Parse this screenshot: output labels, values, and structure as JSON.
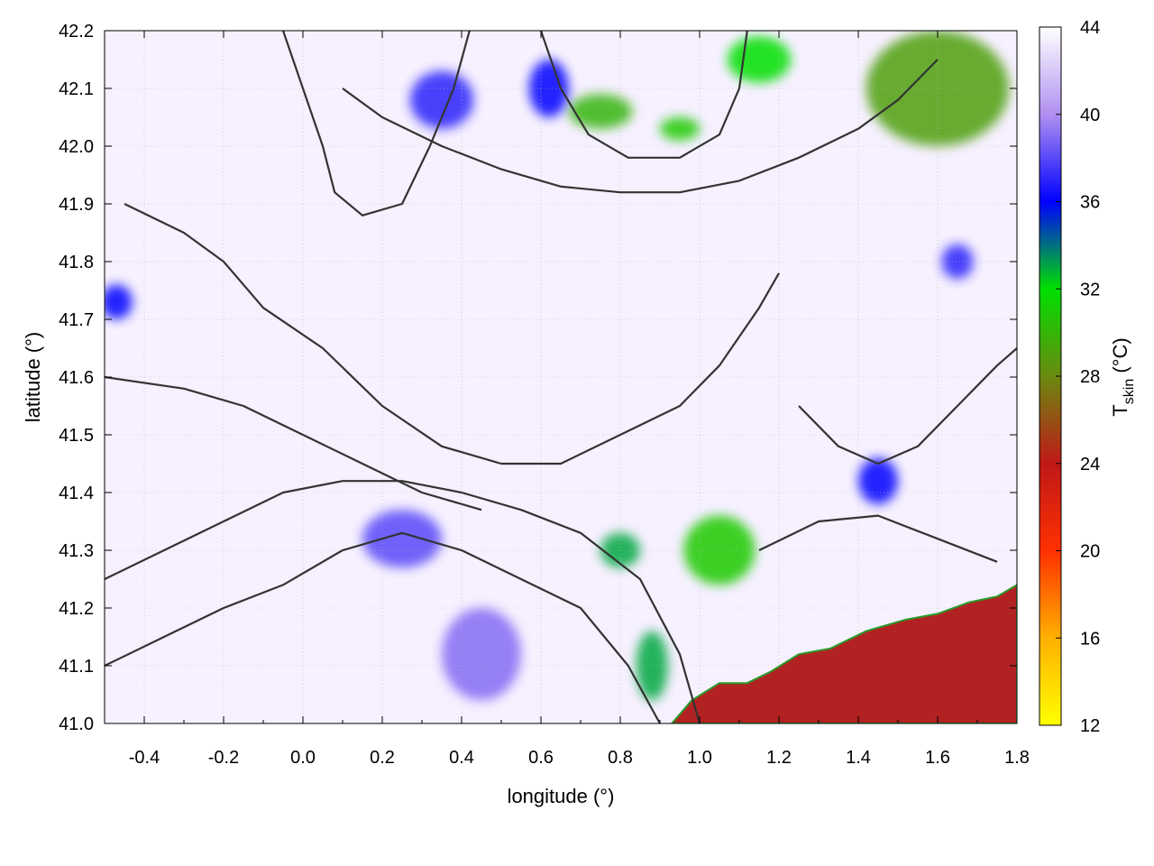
{
  "chart_data": {
    "type": "heatmap",
    "title": "",
    "xlabel": "longitude (°)",
    "ylabel": "latitude (°)",
    "xlim": [
      -0.5,
      1.8
    ],
    "ylim": [
      41.0,
      42.2
    ],
    "x_ticks": [
      "-0.4",
      "-0.2",
      "0.0",
      "0.2",
      "0.4",
      "0.6",
      "0.8",
      "1.0",
      "1.2",
      "1.4",
      "1.6",
      "1.8"
    ],
    "y_ticks": [
      "41.0",
      "41.1",
      "41.2",
      "41.3",
      "41.4",
      "41.5",
      "41.6",
      "41.7",
      "41.8",
      "41.9",
      "42.0",
      "42.1",
      "42.2"
    ],
    "grid": true,
    "colorbar": {
      "label_main": "T",
      "label_sub": "skin",
      "label_unit": " (°C)",
      "range": [
        12,
        44
      ],
      "ticks": [
        "12",
        "16",
        "20",
        "24",
        "28",
        "32",
        "36",
        "40",
        "44"
      ],
      "stops": [
        {
          "value": 12,
          "color": "#ffff00"
        },
        {
          "value": 16,
          "color": "#ffb000"
        },
        {
          "value": 20,
          "color": "#ff3000"
        },
        {
          "value": 24,
          "color": "#c01818"
        },
        {
          "value": 28,
          "color": "#6a8a10"
        },
        {
          "value": 32,
          "color": "#00e000"
        },
        {
          "value": 36,
          "color": "#0000ff"
        },
        {
          "value": 40,
          "color": "#b090f0"
        },
        {
          "value": 44,
          "color": "#ffffff"
        }
      ]
    },
    "sea_region": {
      "value": 24,
      "color": "#b22222",
      "coastline": [
        [
          0.93,
          41.0
        ],
        [
          0.98,
          41.04
        ],
        [
          1.05,
          41.07
        ],
        [
          1.12,
          41.07
        ],
        [
          1.18,
          41.09
        ],
        [
          1.25,
          41.12
        ],
        [
          1.33,
          41.13
        ],
        [
          1.42,
          41.16
        ],
        [
          1.52,
          41.18
        ],
        [
          1.6,
          41.19
        ],
        [
          1.68,
          41.21
        ],
        [
          1.75,
          41.22
        ],
        [
          1.8,
          41.24
        ],
        [
          1.8,
          41.0
        ]
      ]
    },
    "warm_patches": [
      {
        "lon": -0.47,
        "lat": 41.73,
        "rx": 0.04,
        "ry": 0.03,
        "value": 36
      },
      {
        "lon": 0.25,
        "lat": 41.32,
        "rx": 0.1,
        "ry": 0.05,
        "value": 38
      },
      {
        "lon": 0.45,
        "lat": 41.12,
        "rx": 0.1,
        "ry": 0.08,
        "value": 39
      },
      {
        "lon": 0.8,
        "lat": 41.3,
        "rx": 0.05,
        "ry": 0.03,
        "value": 33
      },
      {
        "lon": 1.05,
        "lat": 41.3,
        "rx": 0.09,
        "ry": 0.06,
        "value": 31
      },
      {
        "lon": 0.88,
        "lat": 41.1,
        "rx": 0.04,
        "ry": 0.06,
        "value": 33
      },
      {
        "lon": 0.75,
        "lat": 42.06,
        "rx": 0.08,
        "ry": 0.03,
        "value": 30
      },
      {
        "lon": 0.95,
        "lat": 42.03,
        "rx": 0.05,
        "ry": 0.02,
        "value": 31
      },
      {
        "lon": 1.15,
        "lat": 42.15,
        "rx": 0.08,
        "ry": 0.04,
        "value": 32
      },
      {
        "lon": 1.6,
        "lat": 42.1,
        "rx": 0.18,
        "ry": 0.1,
        "value": 29
      },
      {
        "lon": 1.45,
        "lat": 41.42,
        "rx": 0.05,
        "ry": 0.04,
        "value": 36
      },
      {
        "lon": 1.65,
        "lat": 41.8,
        "rx": 0.04,
        "ry": 0.03,
        "value": 37
      },
      {
        "lon": 0.35,
        "lat": 42.08,
        "rx": 0.08,
        "ry": 0.05,
        "value": 37
      },
      {
        "lon": 0.62,
        "lat": 42.1,
        "rx": 0.05,
        "ry": 0.05,
        "value": 36
      }
    ],
    "contours": [
      [
        [
          -0.5,
          41.1
        ],
        [
          -0.35,
          41.15
        ],
        [
          -0.2,
          41.2
        ],
        [
          -0.05,
          41.24
        ],
        [
          0.1,
          41.3
        ],
        [
          0.25,
          41.33
        ],
        [
          0.4,
          41.3
        ],
        [
          0.55,
          41.25
        ],
        [
          0.7,
          41.2
        ],
        [
          0.82,
          41.1
        ],
        [
          0.9,
          41.0
        ]
      ],
      [
        [
          -0.5,
          41.25
        ],
        [
          -0.35,
          41.3
        ],
        [
          -0.2,
          41.35
        ],
        [
          -0.05,
          41.4
        ],
        [
          0.1,
          41.42
        ],
        [
          0.25,
          41.42
        ],
        [
          0.4,
          41.4
        ],
        [
          0.55,
          41.37
        ],
        [
          0.7,
          41.33
        ],
        [
          0.85,
          41.25
        ],
        [
          0.95,
          41.12
        ],
        [
          1.0,
          41.0
        ]
      ],
      [
        [
          -0.5,
          41.6
        ],
        [
          -0.3,
          41.58
        ],
        [
          -0.15,
          41.55
        ],
        [
          0.0,
          41.5
        ],
        [
          0.15,
          41.45
        ],
        [
          0.3,
          41.4
        ],
        [
          0.45,
          41.37
        ]
      ],
      [
        [
          -0.45,
          41.9
        ],
        [
          -0.3,
          41.85
        ],
        [
          -0.2,
          41.8
        ],
        [
          -0.1,
          41.72
        ],
        [
          0.05,
          41.65
        ],
        [
          0.2,
          41.55
        ],
        [
          0.35,
          41.48
        ],
        [
          0.5,
          41.45
        ],
        [
          0.65,
          41.45
        ],
        [
          0.8,
          41.5
        ],
        [
          0.95,
          41.55
        ],
        [
          1.05,
          41.62
        ],
        [
          1.15,
          41.72
        ],
        [
          1.2,
          41.78
        ]
      ],
      [
        [
          0.1,
          42.1
        ],
        [
          0.2,
          42.05
        ],
        [
          0.35,
          42.0
        ],
        [
          0.5,
          41.96
        ],
        [
          0.65,
          41.93
        ],
        [
          0.8,
          41.92
        ],
        [
          0.95,
          41.92
        ],
        [
          1.1,
          41.94
        ],
        [
          1.25,
          41.98
        ],
        [
          1.4,
          42.03
        ],
        [
          1.5,
          42.08
        ],
        [
          1.6,
          42.15
        ]
      ],
      [
        [
          1.25,
          41.55
        ],
        [
          1.35,
          41.48
        ],
        [
          1.45,
          41.45
        ],
        [
          1.55,
          41.48
        ],
        [
          1.65,
          41.55
        ],
        [
          1.75,
          41.62
        ],
        [
          1.8,
          41.65
        ]
      ],
      [
        [
          1.15,
          41.3
        ],
        [
          1.3,
          41.35
        ],
        [
          1.45,
          41.36
        ],
        [
          1.6,
          41.32
        ],
        [
          1.75,
          41.28
        ]
      ],
      [
        [
          0.6,
          42.2
        ],
        [
          0.65,
          42.1
        ],
        [
          0.72,
          42.02
        ],
        [
          0.82,
          41.98
        ],
        [
          0.95,
          41.98
        ],
        [
          1.05,
          42.02
        ],
        [
          1.1,
          42.1
        ],
        [
          1.12,
          42.2
        ]
      ],
      [
        [
          -0.05,
          42.2
        ],
        [
          0.0,
          42.1
        ],
        [
          0.05,
          42.0
        ],
        [
          0.08,
          41.92
        ],
        [
          0.15,
          41.88
        ],
        [
          0.25,
          41.9
        ],
        [
          0.32,
          42.0
        ],
        [
          0.38,
          42.1
        ],
        [
          0.42,
          42.2
        ]
      ]
    ]
  }
}
